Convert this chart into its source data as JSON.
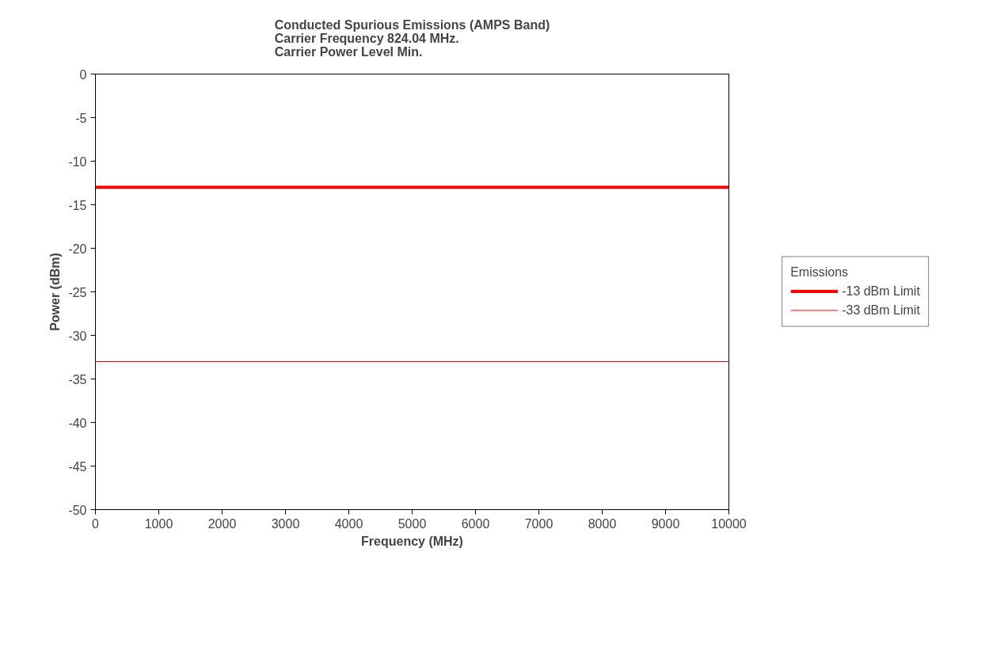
{
  "chart_data": {
    "type": "line",
    "title": "Conducted Spurious Emissions (AMPS Band)\nCarrier Frequency 824.04 MHz.\nCarrier Power Level Min.",
    "xlabel": "Frequency (MHz)",
    "ylabel": "Power (dBm)",
    "legend_title": "Emissions",
    "x": [
      0,
      10000
    ],
    "series": [
      {
        "name": "-13 dBm Limit",
        "color": "#ff0000",
        "values": [
          -13,
          -13
        ]
      },
      {
        "name": "-33 dBm Limit",
        "color": "#ff0000",
        "values": [
          -33,
          -33
        ]
      }
    ],
    "xlim": [
      0,
      10000
    ],
    "xticks": [
      0,
      1000,
      2000,
      3000,
      4000,
      5000,
      6000,
      7000,
      8000,
      9000,
      10000
    ],
    "ylim": [
      -50,
      0
    ],
    "yticks": [
      0,
      -5,
      -10,
      -15,
      -20,
      -25,
      -30,
      -35,
      -40,
      -45,
      -50
    ],
    "grid": false,
    "legend": "right",
    "marker": "none",
    "line_style": "solid"
  }
}
